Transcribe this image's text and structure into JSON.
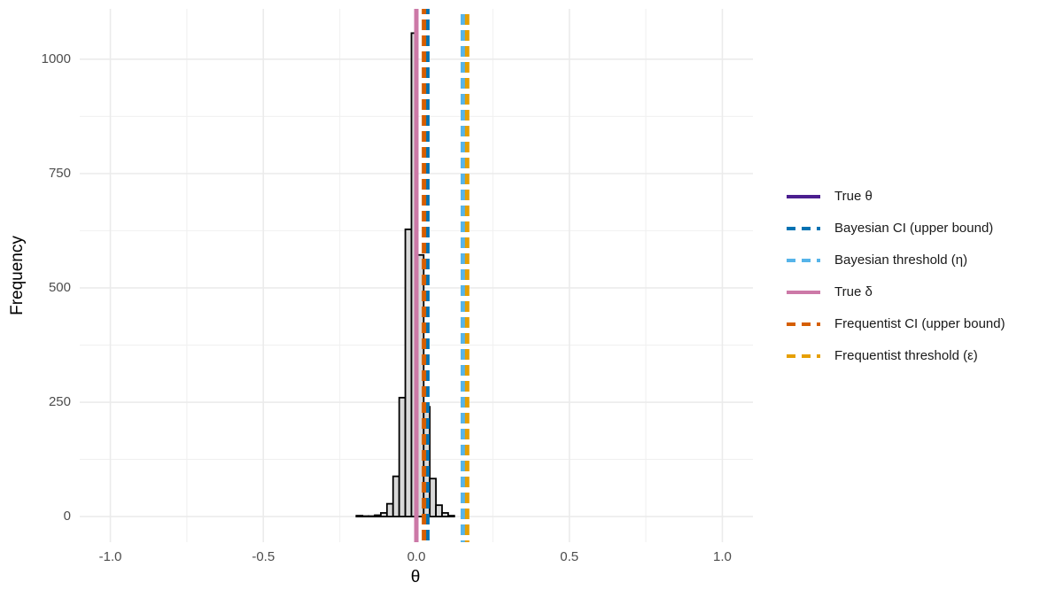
{
  "chart_data": {
    "type": "histogram",
    "x_label": "θ",
    "y_label": "Frequency",
    "bins": [
      -0.196,
      -0.176,
      -0.156,
      -0.136,
      -0.116,
      -0.096,
      -0.076,
      -0.056,
      -0.036,
      -0.016,
      0.004,
      0.024,
      0.044,
      0.064,
      0.084,
      0.104,
      0.124
    ],
    "counts": [
      2,
      1,
      1,
      3,
      8,
      28,
      88,
      260,
      628,
      1057,
      572,
      240,
      83,
      25,
      8,
      2
    ],
    "bar_color": "#d9d9d9",
    "bar_edge": "#000000",
    "xlim": [
      -1.1,
      1.1
    ],
    "ylim": [
      -56,
      1110
    ],
    "xticks": [
      {
        "value": -1,
        "label": "-1.0"
      },
      -0.5,
      {
        "value": 0,
        "label": "0.0"
      },
      0.5,
      {
        "value": 1,
        "label": "1.0"
      }
    ],
    "x_minor_grid": [
      -0.75,
      -0.25,
      0.25,
      0.75
    ],
    "yticks": [
      0,
      250,
      500,
      750,
      1000
    ],
    "y_minor_grid": [
      125,
      375,
      625,
      875
    ],
    "grid": true,
    "legend_position": "right",
    "lines": [
      {
        "name": "True θ",
        "color": "#4b1e8f",
        "x": 0.0,
        "dash": false
      },
      {
        "name": "Bayesian CI (upper bound)",
        "color": "#0072b2",
        "x": 0.036,
        "dash": true
      },
      {
        "name": "Bayesian threshold (η)",
        "color": "#56b4e9",
        "x": 0.152,
        "dash": true
      },
      {
        "name": "True δ",
        "color": "#cc79a7",
        "x": 0.0,
        "dash": false
      },
      {
        "name": "Frequentist CI (upper bound)",
        "color": "#d55e00",
        "x": 0.025,
        "dash": true
      },
      {
        "name": "Frequentist threshold (ε)",
        "color": "#e69f00",
        "x": 0.166,
        "dash": true
      }
    ]
  }
}
